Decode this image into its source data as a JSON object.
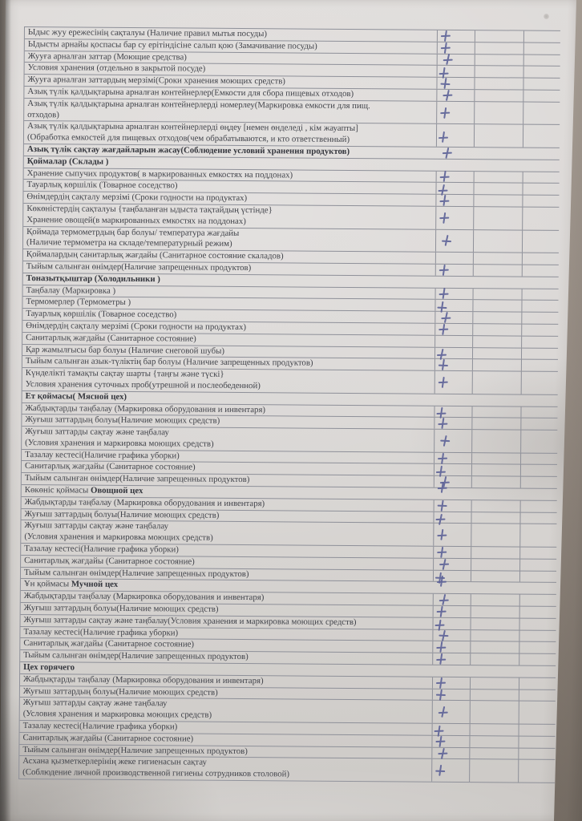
{
  "document": {
    "kind": "sanitary-inspection-checklist",
    "languages": [
      "kk",
      "ru"
    ]
  },
  "colors": {
    "paper": "#dedbd9",
    "line": "#8e9099",
    "text": "#41434a",
    "ink": "#5c6197",
    "background": "#8a8178"
  },
  "check_symbol": "+",
  "rows": [
    {
      "style": "item",
      "mark": true,
      "text": "Ыдыс жуу ережесінің сақталуы (Наличие правил мытья посуды)"
    },
    {
      "style": "item",
      "mark": true,
      "text": "Ыдысты арнайы қоспасы бар су ерітіндісіне  салып қою (Замачивание посуды)"
    },
    {
      "style": "item",
      "mark": true,
      "text": "Жууға арналған заттар (Моющие средства)"
    },
    {
      "style": "item",
      "mark": true,
      "text": "Условия хранения (отдельно в закрытой посуде)"
    },
    {
      "style": "item",
      "mark": true,
      "text": "Жууға арналған заттардың мерзімі(Сроки хранения моющих средств)"
    },
    {
      "style": "item",
      "mark": true,
      "text": "Азық түлік қалдықтарына арналған  контейнерлер(Емкости для сбора пищевых отходов)"
    },
    {
      "style": "item",
      "mark": true,
      "text": "Азық түлік қалдықтарына арналған  контейнерлерді номерлеу(Маркировка емкости для пищ.\nотходов)"
    },
    {
      "style": "item",
      "mark": true,
      "text": "Азық түлік қалдықтарына арналған  контейнерлерді  өңдеу [немен өнделеді , кім жауапты]\n(Обработка емкостей для пищевых отходов(чем обрабатываются, и кто ответственный)"
    },
    {
      "style": "wide",
      "mark": true,
      "text": "Азық түлік сақтау жағдайларын жасау(Соблюдение условий хранения продуктов)"
    },
    {
      "style": "section",
      "mark": false,
      "pre": "",
      "text": "Қоймалар (Склады )"
    },
    {
      "style": "item",
      "mark": true,
      "text": "Хранение сыпучих продуктов( в маркированных емкостях на поддонах)"
    },
    {
      "style": "item",
      "mark": true,
      "text": "Тауарлық көршілік (Товарное соседство)"
    },
    {
      "style": "item",
      "mark": true,
      "text": "Өнімдердің сақталу мерзімі (Сроки годности на продуктах)"
    },
    {
      "style": "item",
      "mark": true,
      "text": "Көкөністердің сақталуы {таңбаланған ыдыста тақтайдың үстінде}\nХранение овощей(в маркированных емкостях на поддонах)"
    },
    {
      "style": "item",
      "mark": true,
      "text": "Қоймада термометрдың бар болуы/ температура жағдайы\n(Наличие термометра на складе/температурный режим)"
    },
    {
      "style": "item",
      "mark": false,
      "text": "Қоймалардың санитарлық жағдайы (Санитарное состояние скаладов)"
    },
    {
      "style": "item",
      "mark": true,
      "text": "Тыйым салынған өнімдер(Наличие запрещенных продуктов)"
    },
    {
      "style": "section",
      "mark": false,
      "pre": "",
      "text": "Тоназытқыштар (Холодильники )"
    },
    {
      "style": "item",
      "mark": true,
      "text": "Таңбалау (Маркировка )"
    },
    {
      "style": "item",
      "mark": true,
      "text": "Термомерлер (Термометры )"
    },
    {
      "style": "item",
      "mark": true,
      "text": "Тауарлық көршілік (Товарное соседство)"
    },
    {
      "style": "item",
      "mark": true,
      "text": "Өнімдердің сақталу мерзімі (Сроки годности на продуктах)"
    },
    {
      "style": "item",
      "mark": false,
      "text": "Санитарлық жағдайы (Санитарное состояние)"
    },
    {
      "style": "item",
      "mark": true,
      "text": "Қар жамылғысы бар болуы (Наличие снеговой шубы)"
    },
    {
      "style": "item",
      "mark": true,
      "text": "Тыйым салынған азык-түліктің бар болуы (Наличие запрещенных продуктов)"
    },
    {
      "style": "item",
      "mark": true,
      "text": "Күнделікті тамақты сақтау шарты {таңғы және түскі}\nУсловия хранения суточных проб(утрешной и послеобеденной)"
    },
    {
      "style": "section",
      "mark": false,
      "pre": "",
      "text": "Ет қоймасы( Мясной цех)"
    },
    {
      "style": "item",
      "mark": true,
      "text": "Жабдықтарды таңбалау (Маркировка оборудования и инвентаря)"
    },
    {
      "style": "item",
      "mark": true,
      "text": "Жуғыш заттардың болуы(Наличие моющих средств)"
    },
    {
      "style": "item",
      "mark": true,
      "text": "Жуғыш заттарды сақтау және таңбалау\n(Условия хранения и маркировка моющих средств)"
    },
    {
      "style": "item",
      "mark": true,
      "text": "Тазалау кестесі(Наличие графика уборки)"
    },
    {
      "style": "item",
      "mark": true,
      "text": "Санитарлық жағдайы (Санитарное состояние)"
    },
    {
      "style": "item",
      "mark": true,
      "text": "Тыйым салынған өнімдер(Наличие запрещенных продуктов)"
    },
    {
      "style": "section",
      "mark": true,
      "markUp": true,
      "pre": "Көкөніс қоймасы ",
      "text": "Овощной цех"
    },
    {
      "style": "item",
      "mark": true,
      "text": "Жабдықтарды таңбалау (Маркировка оборудования и инвентаря)"
    },
    {
      "style": "item",
      "mark": true,
      "text": "Жуғыш заттардың болуы(Наличие моющих средств)"
    },
    {
      "style": "item",
      "mark": true,
      "text": "Жуғыш заттарды сақтау және таңбалау\n(Условия хранения и маркировка моющих средств)"
    },
    {
      "style": "item",
      "mark": true,
      "text": "Тазалау кестесі(Наличие графика уборки)"
    },
    {
      "style": "item",
      "mark": true,
      "text": "Санитарлық жағдайы (Санитарное состояние)"
    },
    {
      "style": "item",
      "mark": true,
      "text": "Тыйым салынған өнімдер(Наличие запрещенных продуктов)"
    },
    {
      "style": "section",
      "mark": true,
      "markUp": true,
      "pre": "Ұн қоймасы ",
      "text": "Мучной цех"
    },
    {
      "style": "item",
      "mark": true,
      "text": "Жабдықтарды таңбалау (Маркировка оборудования и инвентаря)"
    },
    {
      "style": "item",
      "mark": true,
      "text": "Жуғыш заттардың болуы(Наличие моющих средств)"
    },
    {
      "style": "item",
      "mark": true,
      "text": "Жуғыш заттарды сақтау және таңбалау(Условия хранения и маркировка моющих средств)"
    },
    {
      "style": "item",
      "mark": true,
      "text": "Тазалау кестесі(Наличие графика уборки)"
    },
    {
      "style": "item",
      "mark": true,
      "text": "Санитарлық жағдайы (Санитарное состояние)"
    },
    {
      "style": "item",
      "mark": true,
      "text": "Тыйым салынған өнімдер(Наличие запрещенных продуктов)"
    },
    {
      "style": "section",
      "mark": false,
      "pre": "",
      "text": "Цех горячего"
    },
    {
      "style": "item",
      "mark": true,
      "text": "Жабдықтарды таңбалау (Маркировка оборудования и инвентаря)"
    },
    {
      "style": "item",
      "mark": true,
      "text": "Жуғыш заттардың болуы(Наличие моющих средств)"
    },
    {
      "style": "item",
      "mark": true,
      "text": "Жуғыш заттарды сақтау және таңбалау\n(Условия хранения и маркировка моющих средств)"
    },
    {
      "style": "item",
      "mark": true,
      "text": "Тазалау кестесі(Наличие графика уборки)"
    },
    {
      "style": "item",
      "mark": true,
      "text": "Санитарлық жағдайы (Санитарное состояние)"
    },
    {
      "style": "item",
      "mark": true,
      "text": "Тыйым салынған өнімдер(Наличие запрещенных продуктов)"
    },
    {
      "style": "item",
      "mark": true,
      "text": "Асхана қызметкерлерінің жеке гигиенасын сақтау\n(Соблюдение личной производственной гигиены сотрудников столовой)"
    }
  ]
}
